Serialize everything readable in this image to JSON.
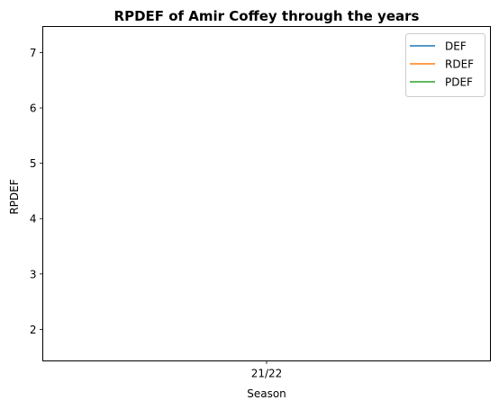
{
  "chart_data": {
    "type": "line",
    "title": "RPDEF of Amir Coffey through the years",
    "xlabel": "Season",
    "ylabel": "RPDEF",
    "categories": [
      "21/22"
    ],
    "yticks": [
      2,
      3,
      4,
      5,
      6,
      7
    ],
    "ylim": [
      1.43,
      7.47
    ],
    "grid": false,
    "legend_position": "top-right",
    "series": [
      {
        "name": "DEF",
        "color": "#1f77b4",
        "values": [
          null
        ]
      },
      {
        "name": "RDEF",
        "color": "#ff7f0e",
        "values": [
          null
        ]
      },
      {
        "name": "PDEF",
        "color": "#2ca02c",
        "values": [
          null
        ]
      }
    ]
  }
}
